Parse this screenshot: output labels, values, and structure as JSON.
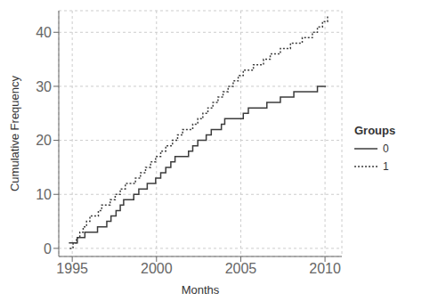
{
  "chart_data": {
    "type": "step",
    "title": "",
    "xlabel": "Months",
    "ylabel": "Cumulative Frequency",
    "legend_title": "Groups",
    "legend": "right",
    "grid": true,
    "xlim": [
      1994.2,
      2011.0
    ],
    "ylim": [
      -1.5,
      44
    ],
    "xticks": [
      1995,
      2000,
      2005,
      2010
    ],
    "yticks": [
      0,
      10,
      20,
      30,
      40
    ],
    "series": [
      {
        "name": "0",
        "color": "#3C3C3C",
        "line_style": "solid",
        "x": [
          1994.8,
          1995.1,
          1995.3,
          1995.55,
          1995.75,
          1995.95,
          1996.2,
          1996.5,
          1996.8,
          1997.05,
          1997.3,
          1997.6,
          1997.85,
          1998.05,
          1998.35,
          1998.65,
          1998.95,
          1999.15,
          1999.45,
          1999.65,
          1999.95,
          2000.25,
          2000.55,
          2000.85,
          2001.1,
          2001.35,
          2001.65,
          2001.9,
          2002.15,
          2002.45,
          2002.75,
          2002.95,
          2003.25,
          2003.55,
          2003.85,
          2004.05,
          2004.35,
          2004.65,
          2004.85,
          2005.15,
          2005.45,
          2005.75,
          2005.95,
          2006.25,
          2006.55,
          2006.85,
          2007.05,
          2007.35,
          2007.65,
          2007.85,
          2008.15,
          2008.45,
          2008.75,
          2008.95,
          2009.25,
          2009.55,
          2009.85,
          2010.05
        ],
        "values": [
          1,
          1,
          2,
          2,
          3,
          3,
          3,
          4,
          4,
          5,
          6,
          7,
          8,
          9,
          9,
          10,
          11,
          11,
          12,
          12,
          13,
          14,
          15,
          16,
          17,
          17,
          17,
          18,
          19,
          20,
          20,
          21,
          22,
          22,
          23,
          24,
          24,
          24,
          24,
          25,
          26,
          26,
          26,
          26,
          27,
          27,
          27,
          28,
          28,
          28,
          29,
          29,
          29,
          29,
          29,
          30,
          30,
          30
        ]
      },
      {
        "name": "1",
        "color": "#3C3C3C",
        "line_style": "dotted",
        "x": [
          1994.85,
          1995.05,
          1995.25,
          1995.45,
          1995.65,
          1995.85,
          1996.05,
          1996.35,
          1996.55,
          1996.75,
          1997.05,
          1997.25,
          1997.55,
          1997.85,
          1998.15,
          1998.45,
          1998.75,
          1999.05,
          1999.35,
          1999.65,
          1999.95,
          2000.25,
          2000.55,
          2000.95,
          2001.25,
          2001.55,
          2001.85,
          2002.15,
          2002.45,
          2002.75,
          2003.05,
          2003.35,
          2003.65,
          2003.95,
          2004.25,
          2004.55,
          2004.85,
          2005.15,
          2005.45,
          2005.75,
          2006.05,
          2006.35,
          2006.75,
          2007.05,
          2007.35,
          2007.65,
          2007.95,
          2008.25,
          2008.65,
          2008.95,
          2009.25,
          2009.55,
          2009.85,
          2010.15
        ],
        "values": [
          0,
          1,
          2,
          3,
          4,
          5,
          6,
          6,
          7,
          8,
          8,
          9,
          10,
          11,
          12,
          12,
          13,
          14,
          15,
          16,
          17,
          18,
          19,
          20,
          21,
          22,
          22,
          23,
          24,
          25,
          26,
          27,
          28,
          29,
          30,
          31,
          32,
          33,
          33,
          34,
          34,
          35,
          36,
          36,
          37,
          37,
          38,
          38,
          39,
          39,
          40,
          41,
          42,
          43
        ]
      }
    ]
  }
}
